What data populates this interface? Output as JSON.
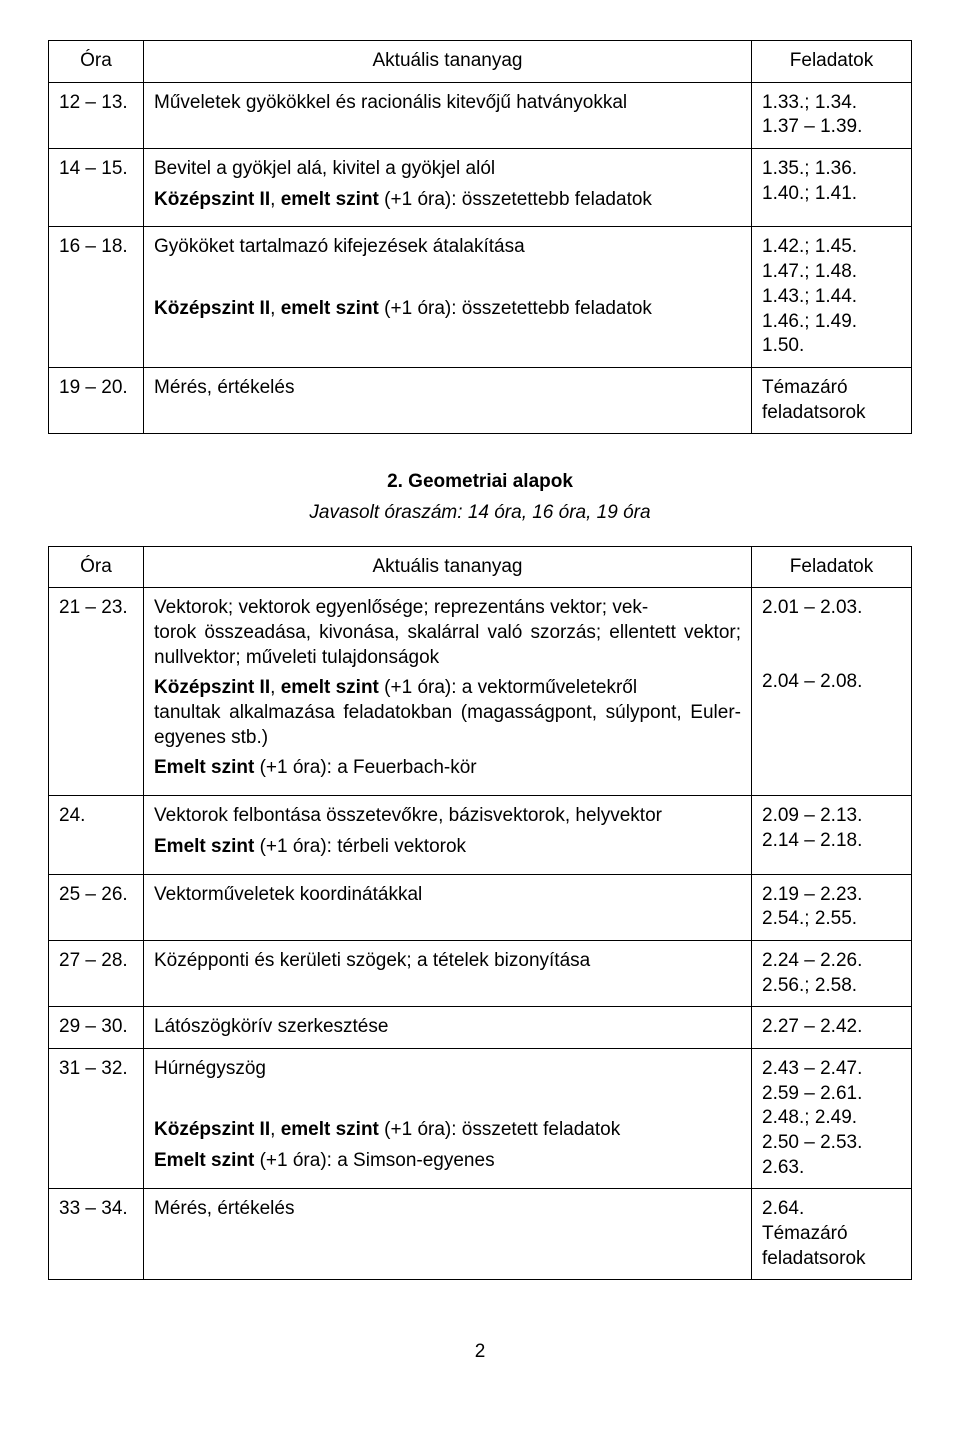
{
  "headers": {
    "ora": "Óra",
    "content": "Aktuális tananyag",
    "feladatok": "Feladatok"
  },
  "table1": [
    {
      "ora": "12 – 13.",
      "content": "Műveletek gyökökkel és racionális kitevőjű hatványokkal",
      "feladatok": "1.33.; 1.34.\n1.37 – 1.39."
    },
    {
      "ora": "14 – 15.",
      "content_lines": [
        {
          "text": "Bevitel a gyökjel alá, kivitel a gyökjel alól"
        },
        {
          "prefix_bold": "Középszint II",
          "mid": ", ",
          "bold2": "emelt szint",
          "rest": " (+1 óra): összetettebb feladatok"
        }
      ],
      "feladatok": "1.35.; 1.36.\n1.40.; 1.41."
    },
    {
      "ora": "16 – 18.",
      "content_lines": [
        {
          "text": "Gyököket tartalmazó kifejezések átalakítása"
        },
        {
          "spacer": true
        },
        {
          "prefix_bold": "Középszint II",
          "mid": ", ",
          "bold2": "emelt szint",
          "rest": " (+1 óra): összetettebb feladatok"
        }
      ],
      "feladatok": "1.42.; 1.45.\n1.47.; 1.48.\n1.43.; 1.44.\n1.46.; 1.49.\n1.50."
    },
    {
      "ora": "19 – 20.",
      "content": "Mérés, értékelés",
      "feladatok": "Témazáró\nfeladatsorok"
    }
  ],
  "section2": {
    "title": "2. Geometriai alapok",
    "sub": "Javasolt óraszám: 14 óra, 16 óra, 19 óra"
  },
  "table2": [
    {
      "ora": "21 – 23.",
      "feladatok": "2.01 – 2.03.\n\n\n2.04 – 2.08."
    },
    {
      "ora": "24.",
      "feladatok": "2.09 – 2.13.\n2.14 – 2.18."
    },
    {
      "ora": "25 – 26.",
      "content": "Vektorműveletek koordinátákkal",
      "feladatok": "2.19 – 2.23.\n2.54.; 2.55."
    },
    {
      "ora": "27 – 28.",
      "content": "Középponti és kerületi szögek; a tételek bizonyítása",
      "feladatok": "2.24 – 2.26.\n2.56.; 2.58."
    },
    {
      "ora": "29 – 30.",
      "content": "Látószögkörív szerkesztése",
      "feladatok": "2.27 – 2.42."
    },
    {
      "ora": "31 – 32.",
      "feladatok": "2.43 – 2.47.\n2.59 – 2.61.\n2.48.; 2.49.\n2.50 – 2.53.\n2.63."
    },
    {
      "ora": "33 – 34.",
      "content": "Mérés, értékelés",
      "feladatok": "2.64.\nTémazáró\nfeladatsorok"
    }
  ],
  "row21": {
    "p1a": "Vektorok; vektorok egyenlősége; reprezentáns vektor; vek-",
    "p1b": "torok összeadása, kivonása, skalárral való szorzás; ellentett vektor; nullvektor; műveleti tulajdonságok",
    "p2_bold1": "Középszint II",
    "p2_mid": ", ",
    "p2_bold2": "emelt szint",
    "p2_rest_a": " (+1 óra): a vektorműveletekről",
    "p2_rest_b": "tanultak alkalmazása feladatokban (magasságpont, súlypont, Euler-egyenes stb.)",
    "p3_bold": "Emelt szint",
    "p3_rest": " (+1 óra): a Feuerbach-kör"
  },
  "row24": {
    "l1": "Vektorok felbontása összetevőkre, bázisvektorok, helyvektor",
    "l2_bold": "Emelt szint",
    "l2_rest": " (+1 óra): térbeli vektorok"
  },
  "row31": {
    "l1": "Húrnégyszög",
    "l2_bold1": "Középszint II",
    "l2_mid": ", ",
    "l2_bold2": "emelt szint",
    "l2_rest": " (+1 óra): összetett feladatok",
    "l3_bold": "Emelt szint",
    "l3_rest": " (+1 óra): a Simson-egyenes"
  },
  "page": "2"
}
